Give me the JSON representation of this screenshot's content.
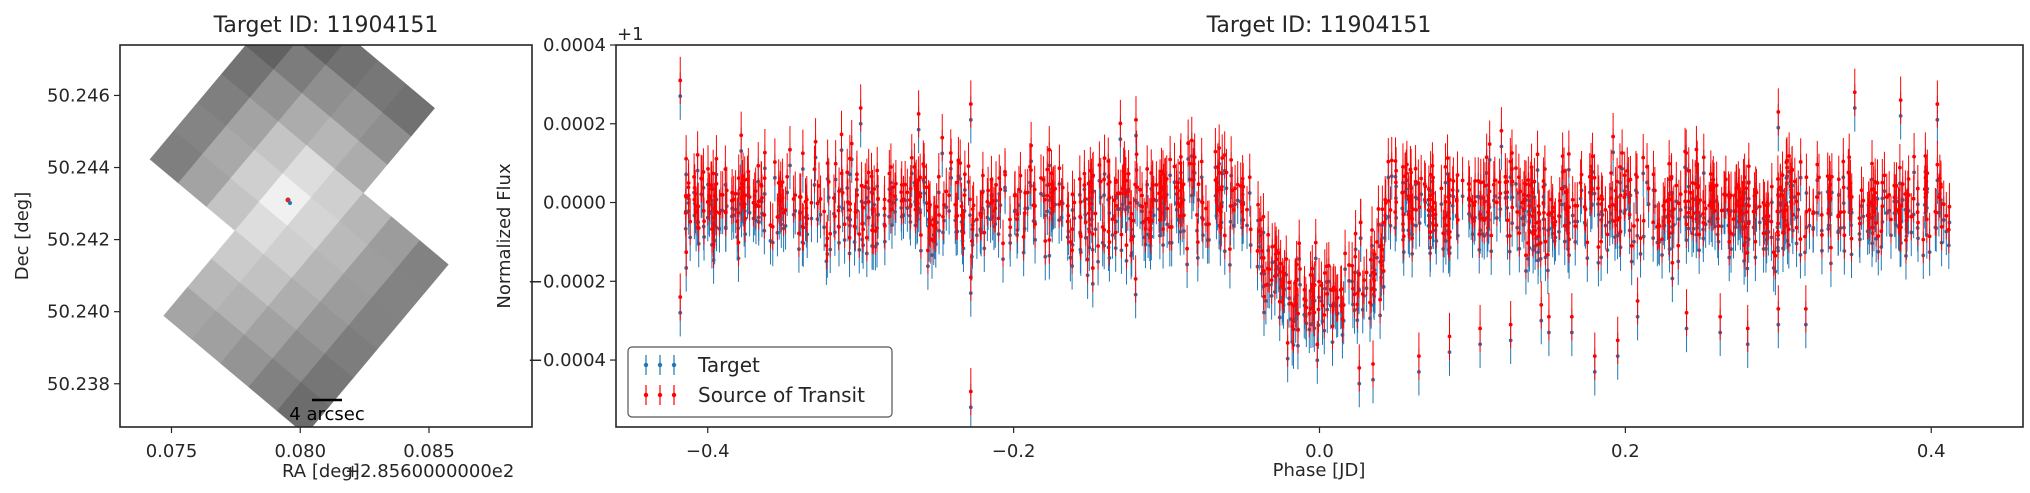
{
  "chart_data": [
    {
      "type": "heatmap",
      "title": "Target ID: 11904151",
      "xlabel": "RA [deg]",
      "ylabel": "Dec [deg]",
      "x_offset_text": "+2.8560000000e2",
      "xlim": [
        0.073,
        0.089
      ],
      "ylim": [
        50.2368,
        50.2474
      ],
      "xticks": [
        0.075,
        0.08,
        0.085
      ],
      "xtick_labels": [
        "0.075",
        "0.080",
        "0.085"
      ],
      "yticks": [
        50.238,
        50.24,
        50.242,
        50.244,
        50.246
      ],
      "ytick_labels": [
        "50.238",
        "50.240",
        "50.242",
        "50.244",
        "50.246"
      ],
      "scalebar_label": "4 arcsec",
      "colormap": "gray",
      "target_marker": {
        "ra": 0.0804,
        "dec": 50.2431,
        "color": "#d62728"
      },
      "grid": false
    },
    {
      "type": "scatter",
      "title": "Target ID: 11904151",
      "xlabel": "Phase [JD]",
      "ylabel": "Normalized Flux",
      "y_offset_text": "+1",
      "xlim": [
        -0.46,
        0.46
      ],
      "ylim": [
        -0.00057,
        0.0004
      ],
      "xticks": [
        -0.4,
        -0.2,
        0.0,
        0.2,
        0.4
      ],
      "xtick_labels": [
        "−0.4",
        "−0.2",
        "0.0",
        "0.2",
        "0.4"
      ],
      "yticks": [
        -0.0004,
        -0.0002,
        0.0,
        0.0002,
        0.0004
      ],
      "ytick_labels": [
        "−0.0004",
        "−0.0002",
        "0.0000",
        "0.0002",
        "0.0004"
      ],
      "grid": false,
      "legend_placement": "lower-left",
      "x_range_of_points": [
        -0.415,
        0.415
      ],
      "baseline_flux": 0.0,
      "scatter_std": 8e-05,
      "errorbar_size": 6e-05,
      "transit": {
        "center": 0.0,
        "depth": 0.00026,
        "duration": 0.085
      },
      "series": [
        {
          "name": "Target",
          "color": "#1f77b4"
        },
        {
          "name": "Source of Transit",
          "color": "#ff0000"
        }
      ],
      "outliers": [
        {
          "x": -0.418,
          "y": 0.0003
        },
        {
          "x": -0.418,
          "y": -0.00025
        },
        {
          "x": -0.228,
          "y": 0.00024
        },
        {
          "x": -0.228,
          "y": -0.0002
        },
        {
          "x": -0.228,
          "y": -0.00049
        },
        {
          "x": 0.026,
          "y": -0.00043
        },
        {
          "x": 0.035,
          "y": -0.00042
        },
        {
          "x": 0.065,
          "y": -0.0004
        },
        {
          "x": 0.085,
          "y": -0.00035
        },
        {
          "x": 0.105,
          "y": -0.00033
        },
        {
          "x": 0.125,
          "y": -0.00032
        },
        {
          "x": 0.145,
          "y": -0.00027
        },
        {
          "x": 0.15,
          "y": -0.0003
        },
        {
          "x": 0.165,
          "y": -0.0003
        },
        {
          "x": 0.18,
          "y": -0.0004
        },
        {
          "x": 0.195,
          "y": -0.00036
        },
        {
          "x": 0.208,
          "y": -0.00026
        },
        {
          "x": 0.24,
          "y": -0.00029
        },
        {
          "x": 0.262,
          "y": -0.0003
        },
        {
          "x": 0.28,
          "y": -0.00033
        },
        {
          "x": 0.3,
          "y": -0.00028
        },
        {
          "x": 0.318,
          "y": -0.00028
        },
        {
          "x": 0.35,
          "y": 0.00027
        },
        {
          "x": 0.38,
          "y": 0.00025
        },
        {
          "x": 0.404,
          "y": 0.00024
        },
        {
          "x": -0.3,
          "y": 0.00023
        },
        {
          "x": -0.12,
          "y": 0.0002
        },
        {
          "x": 0.3,
          "y": 0.00022
        }
      ]
    }
  ]
}
